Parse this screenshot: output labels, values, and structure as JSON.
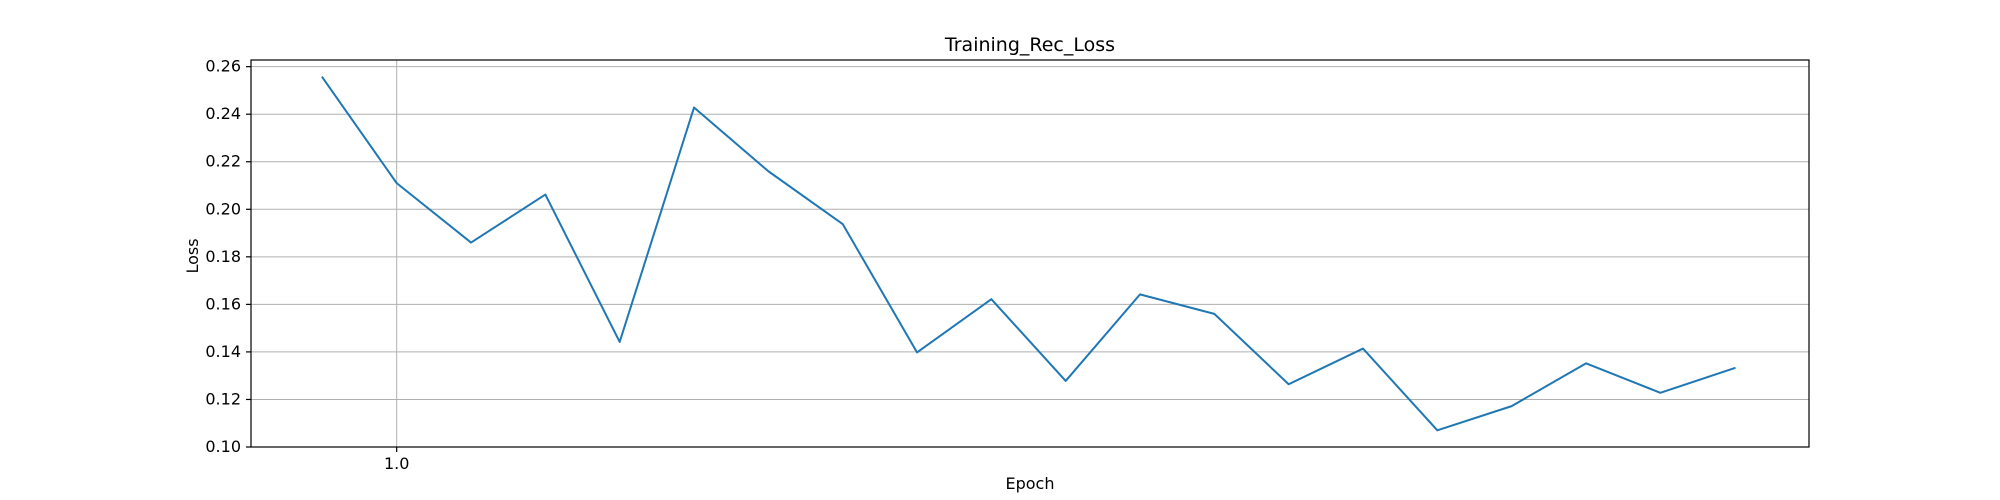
{
  "chart_data": {
    "type": "line",
    "title": "Training_Rec_Loss",
    "xlabel": "Epoch",
    "ylabel": "Loss",
    "x": [
      0,
      1,
      2,
      3,
      4,
      5,
      6,
      7,
      8,
      9,
      10,
      11,
      12,
      13,
      14,
      15,
      16,
      17,
      18,
      19
    ],
    "series": [
      {
        "name": "",
        "values": [
          0.2555,
          0.211,
          0.186,
          0.2062,
          0.1442,
          0.2428,
          0.216,
          0.1938,
          0.1398,
          0.1622,
          0.1278,
          0.1642,
          0.156,
          0.1264,
          0.1414,
          0.107,
          0.1172,
          0.1352,
          0.1228,
          0.1332
        ],
        "color": "#1f77b4"
      }
    ],
    "xticks": [
      1
    ],
    "xtick_labels": [
      "1.0"
    ],
    "yticks": [
      0.1,
      0.12,
      0.14,
      0.16,
      0.18,
      0.2,
      0.22,
      0.24,
      0.26
    ],
    "ytick_labels": [
      "0.10",
      "0.12",
      "0.14",
      "0.16",
      "0.18",
      "0.20",
      "0.22",
      "0.24",
      "0.26"
    ],
    "xlim": [
      -0.96,
      20
    ],
    "ylim": [
      0.1,
      0.2628
    ],
    "grid": true,
    "grid_color": "#b0b0b0",
    "line_color": "#1f77b4",
    "axes_color": "#000000"
  }
}
